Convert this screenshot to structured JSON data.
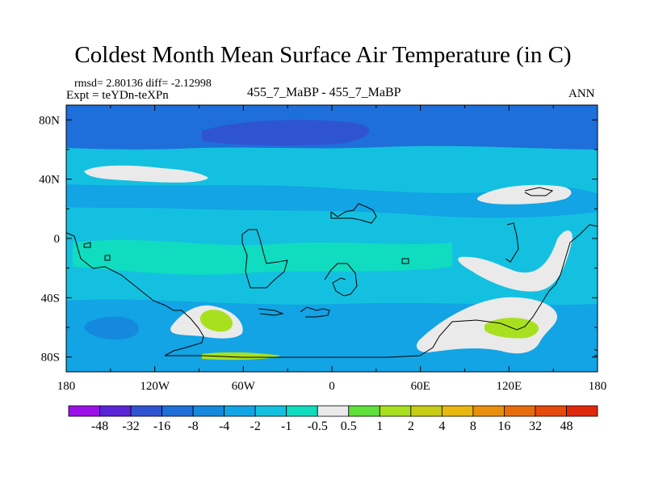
{
  "chart_data": {
    "type": "heatmap",
    "title": "Coldest Month Mean Surface Air Temperature (in C)",
    "stats_line1": "rmsd= 2.80136  diff= -2.12998",
    "stats_line2": "Expt = teYDn-teXPn",
    "center_label": "455_7_MaBP - 455_7_MaBP",
    "right_label": "ANN",
    "xlim": [
      -180,
      180
    ],
    "ylim": [
      -90,
      90
    ],
    "x_ticks": [
      {
        "value": -180,
        "label": "180"
      },
      {
        "value": -120,
        "label": "120W"
      },
      {
        "value": -60,
        "label": "60W"
      },
      {
        "value": 0,
        "label": "0"
      },
      {
        "value": 60,
        "label": "60E"
      },
      {
        "value": 120,
        "label": "120E"
      },
      {
        "value": 180,
        "label": "180"
      }
    ],
    "y_ticks": [
      {
        "value": 80,
        "label": "80N"
      },
      {
        "value": 40,
        "label": "40N"
      },
      {
        "value": 0,
        "label": "0"
      },
      {
        "value": -40,
        "label": "40S"
      },
      {
        "value": -80,
        "label": "80S"
      }
    ],
    "colorbar": {
      "levels": [
        "-48",
        "-32",
        "-16",
        "-8",
        "-4",
        "-2",
        "-1",
        "-0.5",
        "0.5",
        "1",
        "2",
        "4",
        "8",
        "16",
        "32",
        "48"
      ],
      "colors": [
        "#9b10e8",
        "#5a24d8",
        "#2f54d2",
        "#1e6fda",
        "#1589dd",
        "#12a4e4",
        "#14c0e0",
        "#10dcc0",
        "#eaeaea",
        "#5fe03a",
        "#a8e020",
        "#c8cc14",
        "#e8b810",
        "#e8900c",
        "#e86c0c",
        "#e64a0a",
        "#e0280a"
      ]
    },
    "regions": [
      {
        "name": "background",
        "color": "#14c0e0"
      },
      {
        "name": "arctic-band",
        "color": "#1e6fda"
      },
      {
        "name": "arctic-pool",
        "color": "#2f54d2"
      },
      {
        "name": "subtropical-band",
        "color": "#12a4e4"
      },
      {
        "name": "southern-band",
        "color": "#12a4e4"
      },
      {
        "name": "southern-cool-patch",
        "color": "#1589dd"
      },
      {
        "name": "tropical-warm",
        "color": "#10dcc0"
      },
      {
        "name": "north-white-patch",
        "color": "#eaeaea"
      },
      {
        "name": "ne-white-patch",
        "color": "#eaeaea"
      },
      {
        "name": "east-white-streak",
        "color": "#eaeaea"
      },
      {
        "name": "south-americas-warm",
        "color": "#eaeaea"
      },
      {
        "name": "south-americas-warm-core",
        "color": "#a8e020"
      },
      {
        "name": "south-east-warm",
        "color": "#eaeaea"
      },
      {
        "name": "south-east-warm-core",
        "color": "#a8e020"
      },
      {
        "name": "southern-edge-warm",
        "color": "#a8e020"
      }
    ]
  }
}
